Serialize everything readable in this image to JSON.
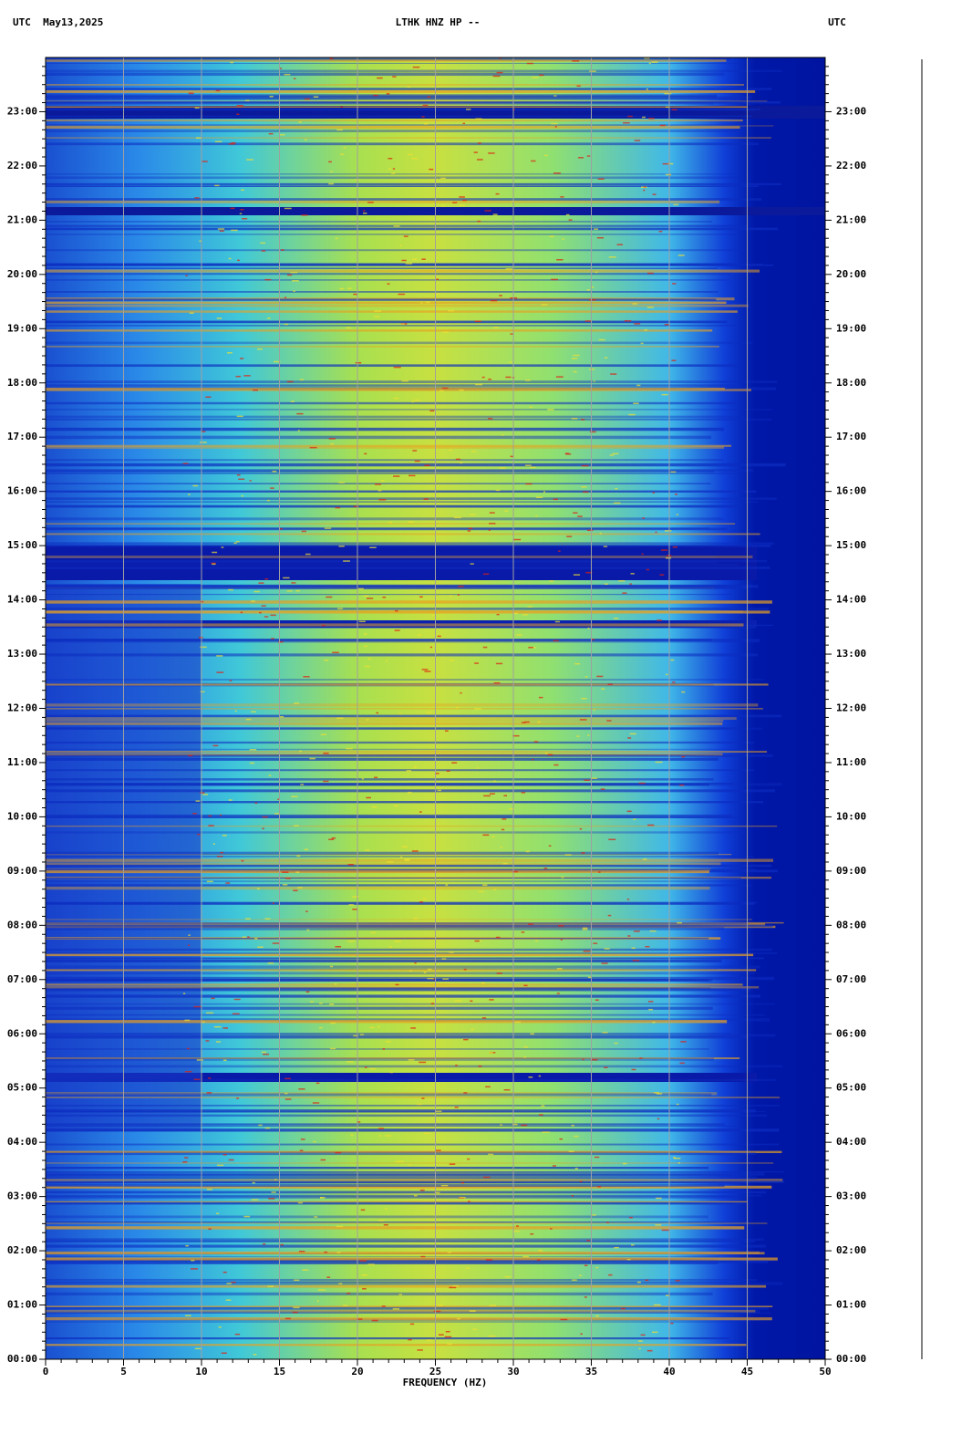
{
  "chart_data": {
    "type": "spectrogram",
    "title": "LTHK HNZ HP --",
    "left_header": "UTC  May13,2025",
    "right_header": "UTC",
    "xlabel": "FREQUENCY (HZ)",
    "xlim": [
      0,
      50
    ],
    "xticks": [
      0,
      5,
      10,
      15,
      20,
      25,
      30,
      35,
      40,
      45,
      50
    ],
    "ylim": [
      0,
      24
    ],
    "yticks": [
      {
        "value": 0,
        "label": "00:00"
      },
      {
        "value": 1,
        "label": "01:00"
      },
      {
        "value": 2,
        "label": "02:00"
      },
      {
        "value": 3,
        "label": "03:00"
      },
      {
        "value": 4,
        "label": "04:00"
      },
      {
        "value": 5,
        "label": "05:00"
      },
      {
        "value": 6,
        "label": "06:00"
      },
      {
        "value": 7,
        "label": "07:00"
      },
      {
        "value": 8,
        "label": "08:00"
      },
      {
        "value": 9,
        "label": "09:00"
      },
      {
        "value": 10,
        "label": "10:00"
      },
      {
        "value": 11,
        "label": "11:00"
      },
      {
        "value": 12,
        "label": "12:00"
      },
      {
        "value": 13,
        "label": "13:00"
      },
      {
        "value": 14,
        "label": "14:00"
      },
      {
        "value": 15,
        "label": "15:00"
      },
      {
        "value": 16,
        "label": "16:00"
      },
      {
        "value": 17,
        "label": "17:00"
      },
      {
        "value": 18,
        "label": "18:00"
      },
      {
        "value": 19,
        "label": "19:00"
      },
      {
        "value": 20,
        "label": "20:00"
      },
      {
        "value": 21,
        "label": "21:00"
      },
      {
        "value": 22,
        "label": "22:00"
      },
      {
        "value": 23,
        "label": "23:00"
      }
    ],
    "grid": true
  }
}
